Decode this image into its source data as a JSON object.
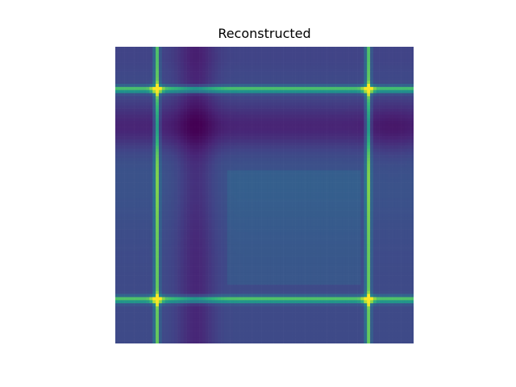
{
  "chart_data": {
    "type": "heatmap",
    "title": "Reconstructed",
    "xlabel": "",
    "ylabel": "",
    "axes_visible": false,
    "colormap": "viridis",
    "grid_size": [
      24,
      24
    ],
    "bright_rows": [
      3,
      20
    ],
    "bright_cols": [
      3,
      20
    ],
    "description_values": {
      "background_low": 0.15,
      "band_dark": 0.05,
      "region_mid": 0.35,
      "line_peak": 0.85,
      "intersection_peak": 1.0
    }
  }
}
